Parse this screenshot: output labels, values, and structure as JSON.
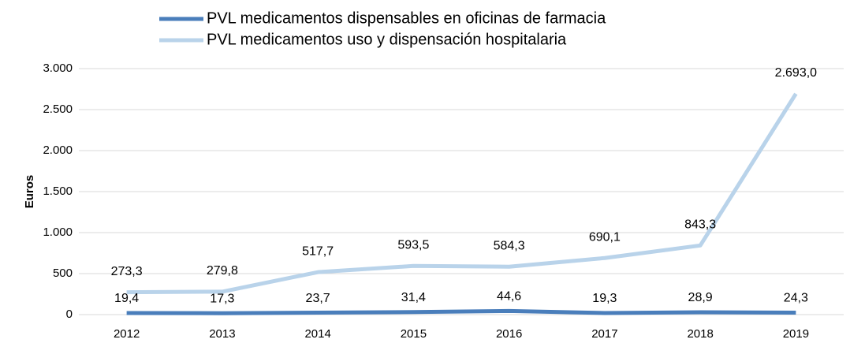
{
  "chart_data": {
    "type": "line",
    "y_label": "Euros",
    "categories": [
      "2012",
      "2013",
      "2014",
      "2015",
      "2016",
      "2017",
      "2018",
      "2019"
    ],
    "series": [
      {
        "name": "PVL medicamentos dispensables en oficinas de farmacia",
        "color": "#4a7ebb",
        "values": [
          19.4,
          17.3,
          23.7,
          31.4,
          44.6,
          19.3,
          28.9,
          24.3
        ],
        "value_labels": [
          "19,4",
          "17,3",
          "23,7",
          "31,4",
          "44,6",
          "19,3",
          "28,9",
          "24,3"
        ]
      },
      {
        "name": "PVL medicamentos uso y dispensación hospitalaria",
        "color": "#b9d3ea",
        "values": [
          273.3,
          279.8,
          517.7,
          593.5,
          584.3,
          690.1,
          843.3,
          2693.0
        ],
        "value_labels": [
          "273,3",
          "279,8",
          "517,7",
          "593,5",
          "584,3",
          "690,1",
          "843,3",
          "2.693,0"
        ]
      }
    ],
    "ylim": [
      0,
      3000
    ],
    "yticks": [
      0,
      500,
      {
        "value": 1000,
        "label": "1.000"
      },
      {
        "value": 1500,
        "label": "1.500"
      },
      {
        "value": 2000,
        "label": "2.000"
      },
      {
        "value": 2500,
        "label": "2.500"
      },
      {
        "value": 3000,
        "label": "3.000"
      }
    ],
    "grid": true,
    "legend": "top"
  }
}
